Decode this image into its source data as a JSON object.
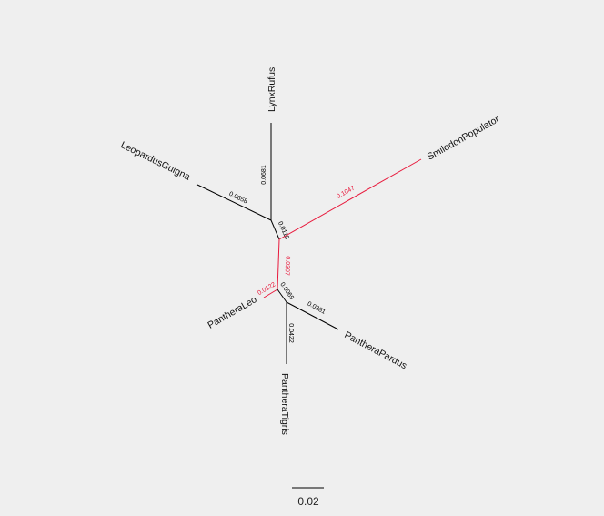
{
  "tree": {
    "taxa": [
      "LynxRufus",
      "LeopardusGuigna",
      "SmilodonPopulator",
      "PantheraLeo",
      "PantheraPardus",
      "PantheraTigris"
    ],
    "branches": [
      {
        "id": "lynx",
        "label": "0.0681",
        "highlight": false
      },
      {
        "id": "leopardus",
        "label": "0.0658",
        "highlight": false
      },
      {
        "id": "ancestor1",
        "label": "0.0118",
        "highlight": false
      },
      {
        "id": "smilodon",
        "label": "0.1047",
        "highlight": true
      },
      {
        "id": "internal",
        "label": "0.0307",
        "highlight": true
      },
      {
        "id": "leo",
        "label": "0.0122",
        "highlight": true
      },
      {
        "id": "ancestor2",
        "label": "0.0069",
        "highlight": false
      },
      {
        "id": "pardus",
        "label": "0.0381",
        "highlight": false
      },
      {
        "id": "tigris",
        "label": "0.0422",
        "highlight": false
      }
    ]
  },
  "scale_bar": {
    "label": "0.02"
  },
  "colors": {
    "branch": "#000000",
    "highlight": "#e8193c",
    "background": "#efefef"
  }
}
